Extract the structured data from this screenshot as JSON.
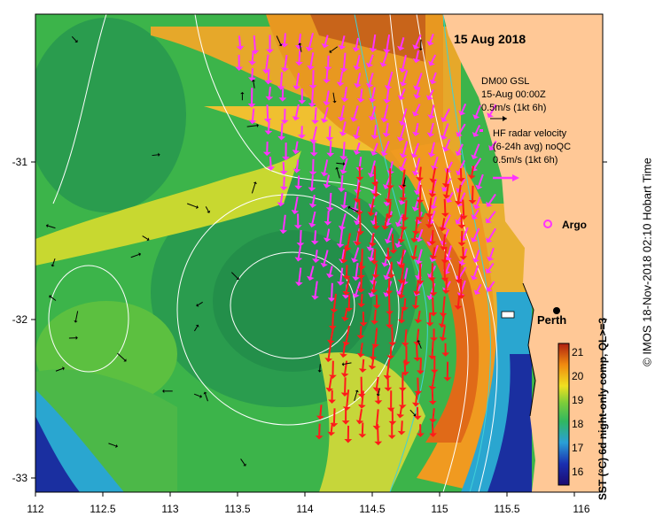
{
  "map": {
    "date_title": "15 Aug 2018",
    "x_ticks": [
      "112",
      "112.5",
      "113",
      "113.5",
      "114",
      "114.5",
      "115",
      "115.5",
      "116"
    ],
    "y_ticks": [
      "-31",
      "-32",
      "-33"
    ],
    "location_label": "Perth"
  },
  "legend": {
    "model_line1": "DM00 GSL",
    "model_line2": "15-Aug 00:00Z",
    "model_scale": "0.5m/s (1kt 6h)",
    "radar_line1": "HF radar velocity",
    "radar_line2": "(6-24h avg) noQC",
    "radar_scale": "0.5m/s (1kt 6h)",
    "argo_label": "Argo"
  },
  "colorbar": {
    "ticks": [
      "21",
      "20",
      "19",
      "18",
      "17",
      "16"
    ],
    "label": "SST (°C) 6d night-only comp, QL>=3"
  },
  "credit": "© IMOS 18-Nov-2018 02:10 Hobart Time",
  "colors": {
    "land": "#ffc896",
    "sst_cold": "#1a2fa0",
    "sst_mid": "#3cb44a",
    "sst_warm": "#e07a12",
    "hf_radar_arrow": "#ff33ff",
    "model_arrow": "#ff1a1a"
  }
}
